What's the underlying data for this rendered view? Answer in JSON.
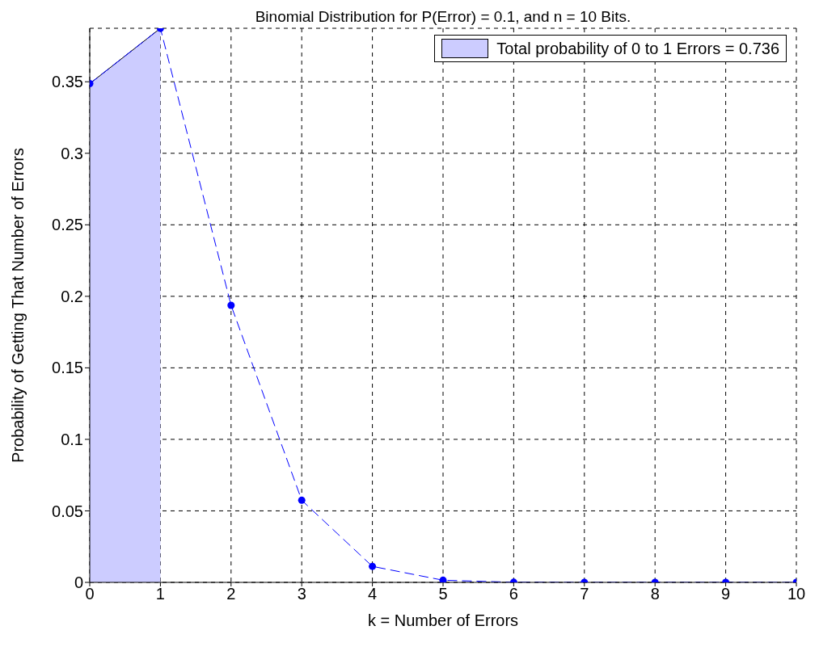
{
  "chart_data": {
    "type": "line",
    "title": "Binomial Distribution for P(Error) = 0.1, and n = 10 Bits.",
    "xlabel": "k = Number of Errors",
    "ylabel": "Probability of Getting That Number of Errors",
    "series": [
      {
        "type": "area",
        "name": "Total probability of 0 to 1 Errors = 0.736",
        "color": "#ccccff",
        "x": [
          0,
          1
        ],
        "values": [
          0.3487,
          0.3874
        ]
      },
      {
        "color": "#0000ff",
        "line_style": "dashed",
        "marker": "none",
        "x": [
          0,
          1,
          2,
          3,
          4,
          5,
          6,
          7,
          8,
          9,
          10
        ],
        "values": [
          0.3487,
          0.3874,
          0.1937,
          0.0574,
          0.0112,
          0.0015,
          0.0001,
          0,
          0,
          0,
          0
        ]
      },
      {
        "type": "lollipop",
        "color": "#0000ff",
        "marker": "circle",
        "x": [
          0,
          1,
          2,
          3,
          4,
          5,
          6,
          7,
          8,
          9,
          10
        ],
        "values": [
          0.3487,
          0.3874,
          0.1937,
          0.0574,
          0.0112,
          0.0015,
          0.0001,
          0,
          0,
          0,
          0
        ]
      }
    ],
    "xlim": [
      0,
      10
    ],
    "xticks": [
      0,
      1,
      2,
      3,
      4,
      5,
      6,
      7,
      8,
      9,
      10
    ],
    "ylim": [
      0,
      0.3874
    ],
    "yticks": [
      0,
      0.05,
      0.1,
      0.15,
      0.2,
      0.25,
      0.3,
      0.35
    ],
    "grid": true,
    "legend": "top right"
  }
}
